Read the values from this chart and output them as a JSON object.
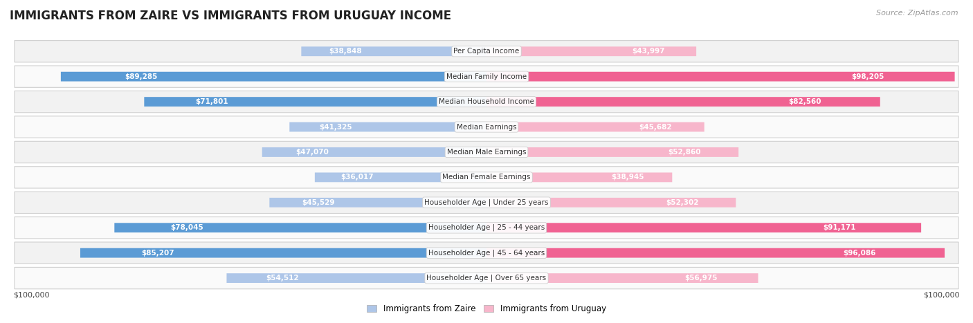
{
  "title": "IMMIGRANTS FROM ZAIRE VS IMMIGRANTS FROM URUGUAY INCOME",
  "source": "Source: ZipAtlas.com",
  "categories": [
    "Per Capita Income",
    "Median Family Income",
    "Median Household Income",
    "Median Earnings",
    "Median Male Earnings",
    "Median Female Earnings",
    "Householder Age | Under 25 years",
    "Householder Age | 25 - 44 years",
    "Householder Age | 45 - 64 years",
    "Householder Age | Over 65 years"
  ],
  "zaire_values": [
    38848,
    89285,
    71801,
    41325,
    47070,
    36017,
    45529,
    78045,
    85207,
    54512
  ],
  "uruguay_values": [
    43997,
    98205,
    82560,
    45682,
    52860,
    38945,
    52302,
    91171,
    96086,
    56975
  ],
  "zaire_labels": [
    "$38,848",
    "$89,285",
    "$71,801",
    "$41,325",
    "$47,070",
    "$36,017",
    "$45,529",
    "$78,045",
    "$85,207",
    "$54,512"
  ],
  "uruguay_labels": [
    "$43,997",
    "$98,205",
    "$82,560",
    "$45,682",
    "$52,860",
    "$38,945",
    "$52,302",
    "$91,171",
    "$96,086",
    "$56,975"
  ],
  "max_value": 100000,
  "zaire_color_light": "#aec6e8",
  "zaire_color_dark": "#5b9bd5",
  "uruguay_color_light": "#f7b6cb",
  "uruguay_color_dark": "#f06292",
  "background_color": "#ffffff",
  "row_bg_odd": "#f2f2f2",
  "row_bg_even": "#fafafa",
  "label_color_inside": "#ffffff",
  "label_color_outside": "#555555",
  "title_fontsize": 12,
  "label_fontsize": 7.5,
  "category_fontsize": 7.5,
  "legend_fontsize": 8.5,
  "source_fontsize": 8
}
